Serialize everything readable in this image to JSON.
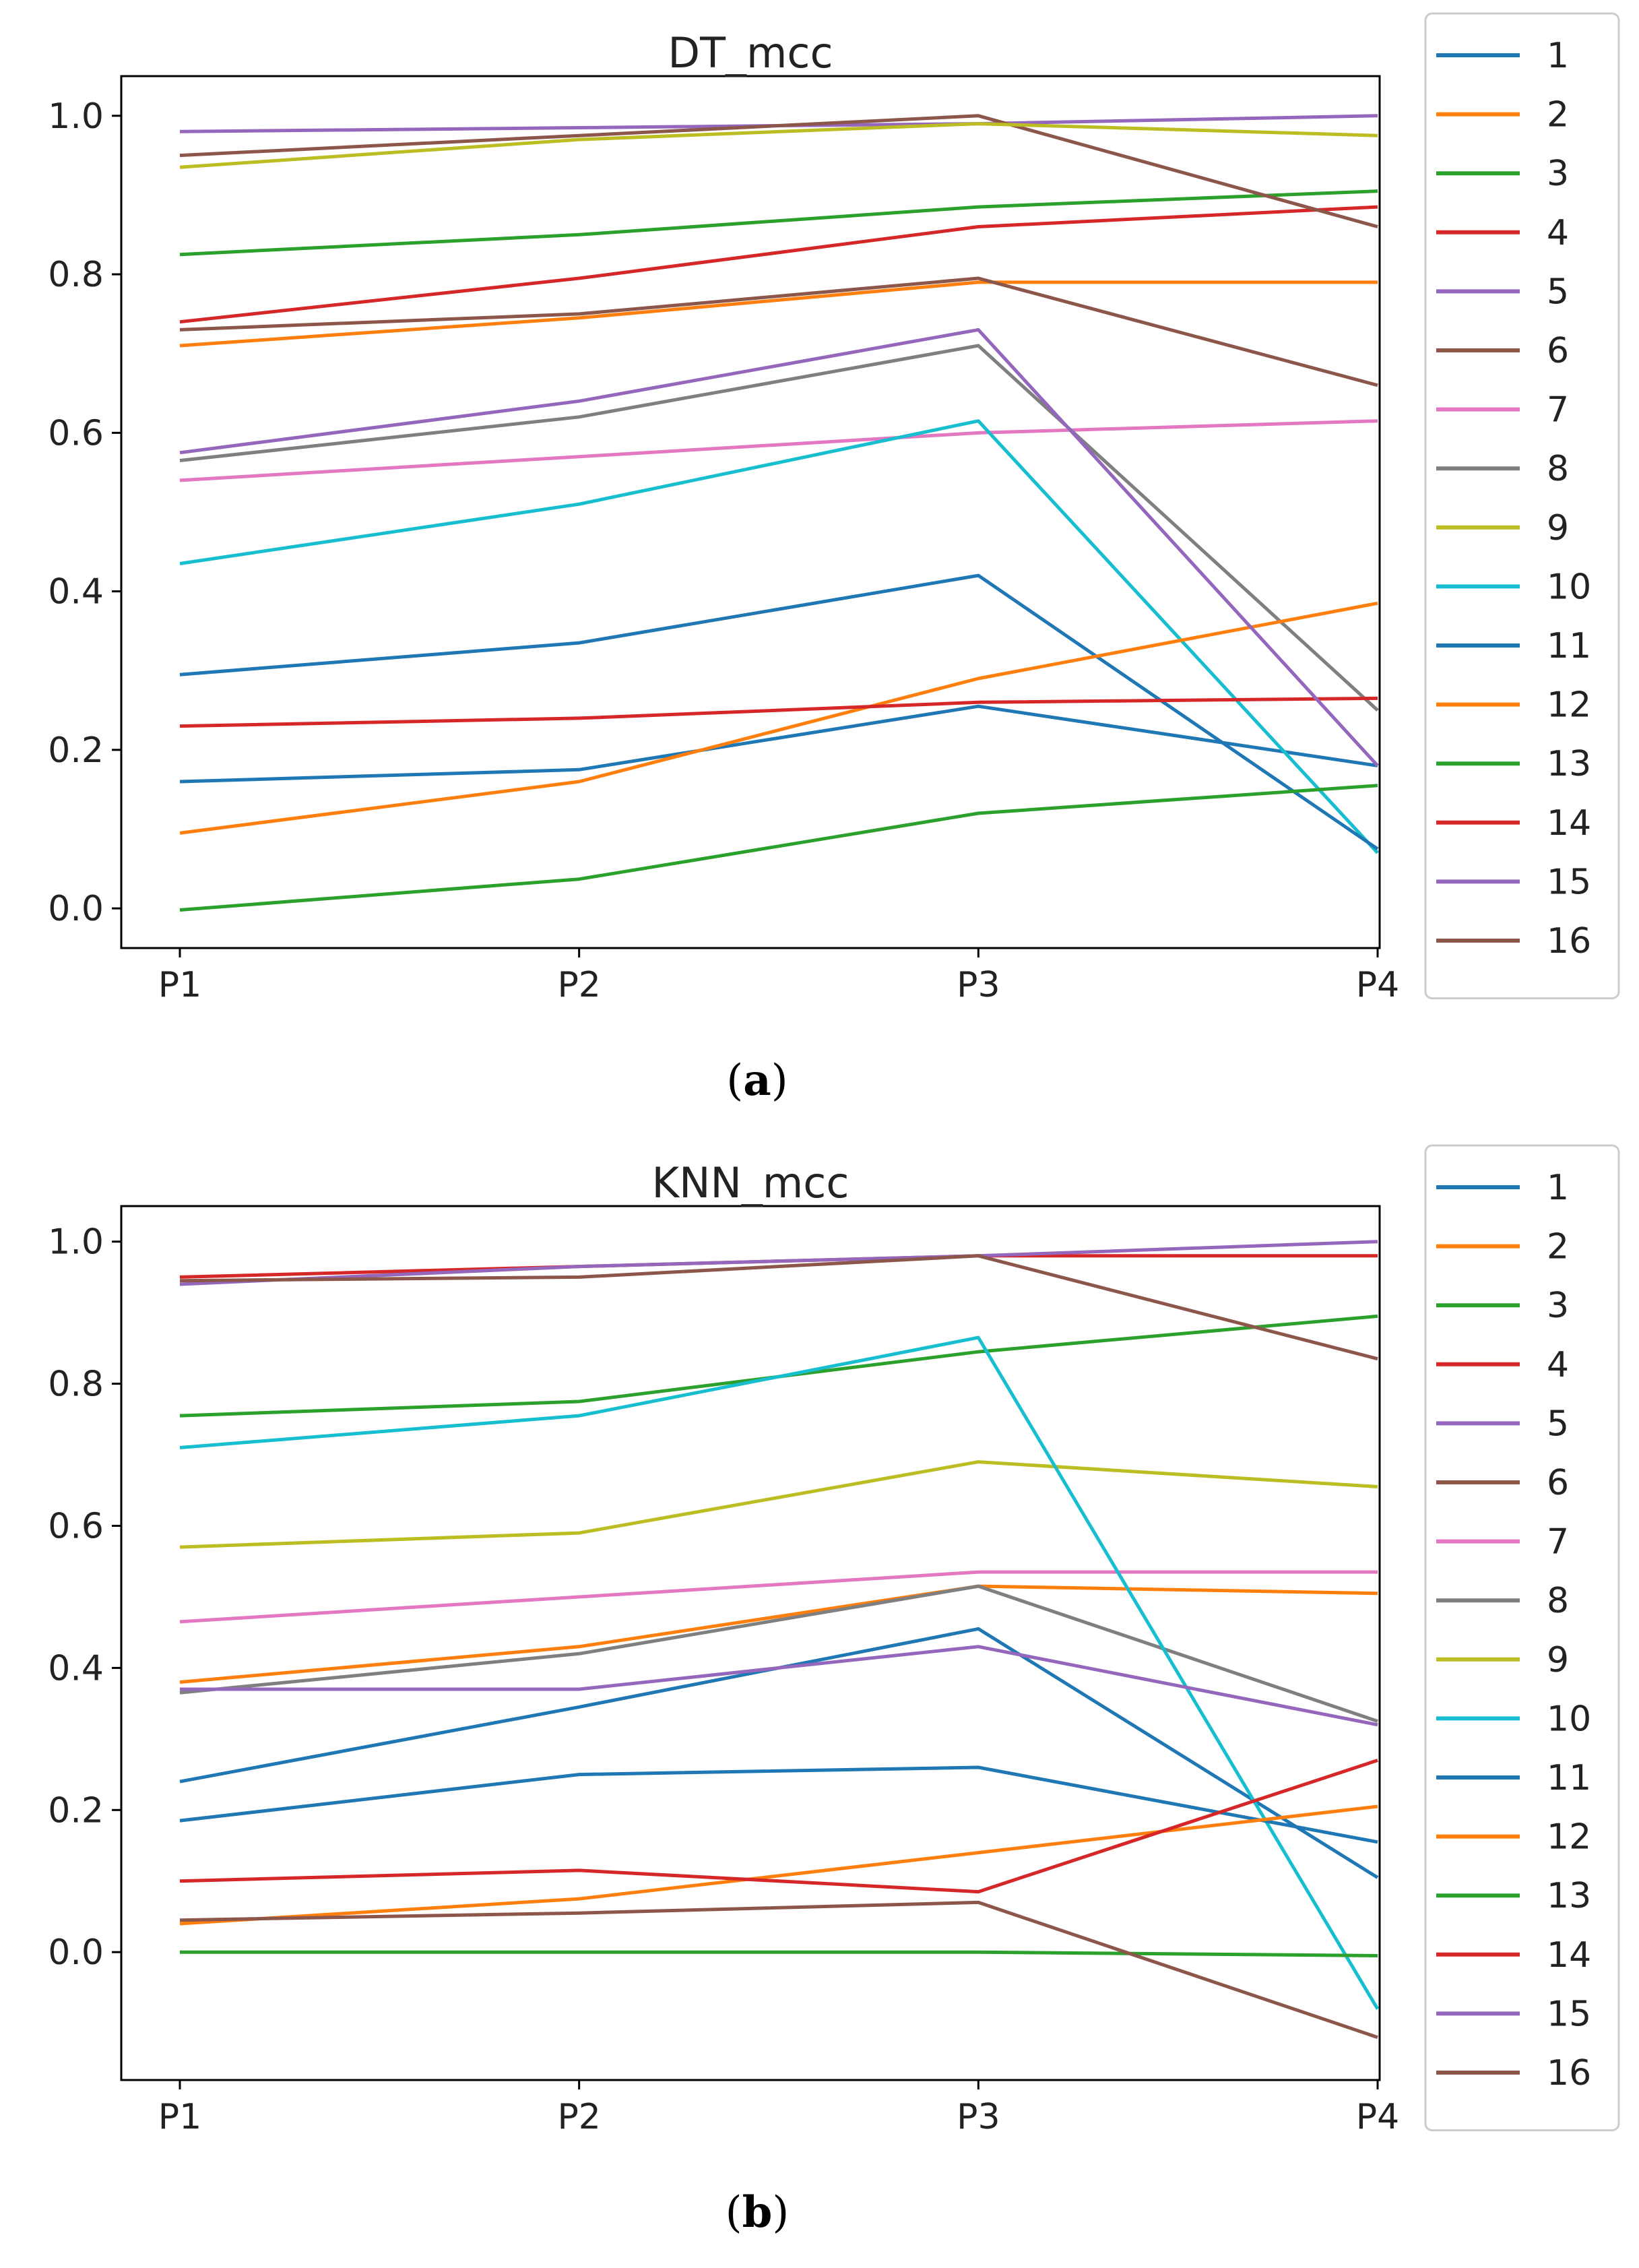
{
  "chart_data": [
    {
      "type": "line",
      "title": "DT_mcc",
      "caption_letter": "a",
      "categories": [
        "P1",
        "P2",
        "P3",
        "P4"
      ],
      "ylim": [
        -0.05,
        1.05
      ],
      "yticks": [
        0.0,
        0.2,
        0.4,
        0.6,
        0.8,
        1.0
      ],
      "ytick_labels": [
        "0.0",
        "0.2",
        "0.4",
        "0.6",
        "0.8",
        "1.0"
      ],
      "legend_position": "right",
      "series": [
        {
          "name": "1",
          "values": [
            0.16,
            0.175,
            0.255,
            0.18
          ]
        },
        {
          "name": "2",
          "values": [
            0.71,
            0.745,
            0.79,
            0.79
          ]
        },
        {
          "name": "3",
          "values": [
            0.825,
            0.85,
            0.885,
            0.905
          ]
        },
        {
          "name": "4",
          "values": [
            0.74,
            0.795,
            0.86,
            0.885
          ]
        },
        {
          "name": "5",
          "values": [
            0.98,
            0.985,
            0.99,
            1.0
          ]
        },
        {
          "name": "6",
          "values": [
            0.95,
            0.975,
            1.0,
            0.86
          ]
        },
        {
          "name": "7",
          "values": [
            0.54,
            0.57,
            0.6,
            0.615
          ]
        },
        {
          "name": "8",
          "values": [
            0.565,
            0.62,
            0.71,
            0.25
          ]
        },
        {
          "name": "9",
          "values": [
            0.935,
            0.97,
            0.99,
            0.975
          ]
        },
        {
          "name": "10",
          "values": [
            0.435,
            0.51,
            0.615,
            0.07
          ]
        },
        {
          "name": "11",
          "values": [
            0.295,
            0.335,
            0.42,
            0.075
          ]
        },
        {
          "name": "12",
          "values": [
            0.095,
            0.16,
            0.29,
            0.385
          ]
        },
        {
          "name": "13",
          "values": [
            -0.002,
            0.037,
            0.12,
            0.155
          ]
        },
        {
          "name": "14",
          "values": [
            0.23,
            0.24,
            0.26,
            0.265
          ]
        },
        {
          "name": "15",
          "values": [
            0.575,
            0.64,
            0.73,
            0.18
          ]
        },
        {
          "name": "16",
          "values": [
            0.73,
            0.75,
            0.795,
            0.66
          ]
        }
      ]
    },
    {
      "type": "line",
      "title": "KNN_mcc",
      "caption_letter": "b",
      "categories": [
        "P1",
        "P2",
        "P3",
        "P4"
      ],
      "ylim": [
        -0.18,
        1.05
      ],
      "yticks": [
        0.0,
        0.2,
        0.4,
        0.6,
        0.8,
        1.0
      ],
      "ytick_labels": [
        "0.0",
        "0.2",
        "0.4",
        "0.6",
        "0.8",
        "1.0"
      ],
      "legend_position": "right",
      "series": [
        {
          "name": "1",
          "values": [
            0.24,
            0.345,
            0.455,
            0.105
          ]
        },
        {
          "name": "2",
          "values": [
            0.38,
            0.43,
            0.515,
            0.505
          ]
        },
        {
          "name": "3",
          "values": [
            0.755,
            0.775,
            0.845,
            0.895
          ]
        },
        {
          "name": "4",
          "values": [
            0.95,
            0.965,
            0.98,
            0.98
          ]
        },
        {
          "name": "5",
          "values": [
            0.94,
            0.965,
            0.98,
            1.0
          ]
        },
        {
          "name": "6",
          "values": [
            0.945,
            0.95,
            0.98,
            0.835
          ]
        },
        {
          "name": "7",
          "values": [
            0.465,
            0.5,
            0.535,
            0.535
          ]
        },
        {
          "name": "8",
          "values": [
            0.365,
            0.42,
            0.515,
            0.325
          ]
        },
        {
          "name": "9",
          "values": [
            0.57,
            0.59,
            0.69,
            0.655
          ]
        },
        {
          "name": "10",
          "values": [
            0.71,
            0.755,
            0.865,
            -0.08
          ]
        },
        {
          "name": "11",
          "values": [
            0.185,
            0.25,
            0.26,
            0.155
          ]
        },
        {
          "name": "12",
          "values": [
            0.04,
            0.075,
            0.14,
            0.205
          ]
        },
        {
          "name": "13",
          "values": [
            0.0,
            0.0,
            0.0,
            -0.005
          ]
        },
        {
          "name": "14",
          "values": [
            0.1,
            0.115,
            0.085,
            0.27
          ]
        },
        {
          "name": "15",
          "values": [
            0.37,
            0.37,
            0.43,
            0.32
          ]
        },
        {
          "name": "16",
          "values": [
            0.045,
            0.055,
            0.07,
            -0.12
          ]
        }
      ]
    }
  ],
  "series_colors": [
    "#1f77b4",
    "#ff7f0e",
    "#2ca02c",
    "#d62728",
    "#9467bd",
    "#8c564b",
    "#e377c2",
    "#7f7f7f",
    "#bcbd22",
    "#17becf",
    "#1f77b4",
    "#ff7f0e",
    "#2ca02c",
    "#d62728",
    "#9467bd",
    "#8c564b"
  ]
}
